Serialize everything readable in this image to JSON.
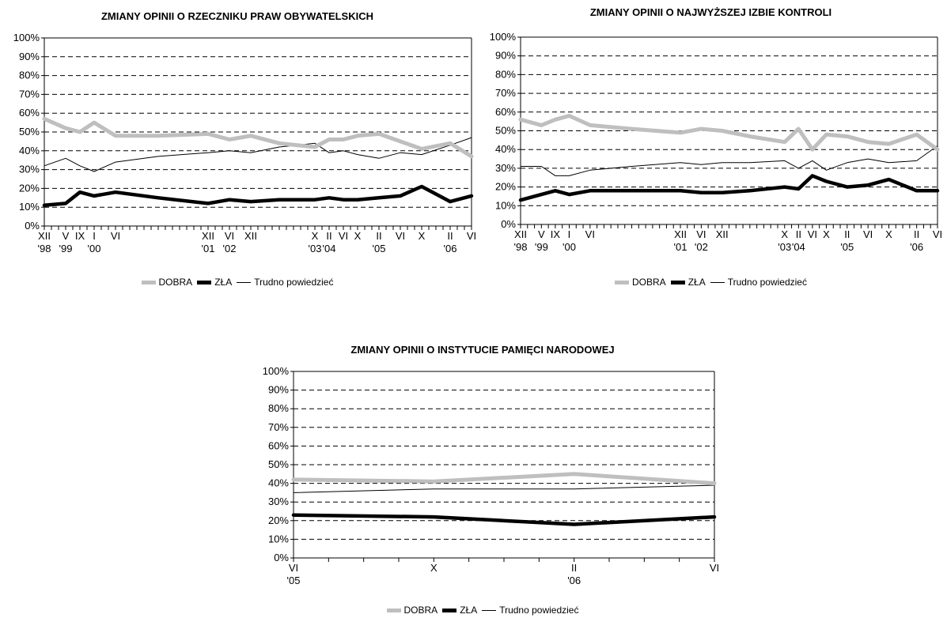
{
  "legend_labels": [
    "DOBRA",
    "ZŁA",
    "Trudno powiedzieć"
  ],
  "colors": {
    "dobra": "#bfbfbf",
    "zla": "#000000",
    "trudno": "#000000"
  },
  "chart_data": [
    {
      "type": "line",
      "title": "ZMIANY OPINII O RZECZNIKU PRAW OBYWATELSKICH",
      "ylim": [
        0,
        100
      ],
      "yticks": [
        "0%",
        "10%",
        "20%",
        "30%",
        "40%",
        "50%",
        "60%",
        "70%",
        "80%",
        "90%",
        "100%"
      ],
      "grid": true,
      "legend_position": "bottom",
      "xlim": [
        0,
        30
      ],
      "x_ticks": [
        {
          "x": 0,
          "label": "XII",
          "year": "'98"
        },
        {
          "x": 1.5,
          "label": "V",
          "year": "'99"
        },
        {
          "x": 2.5,
          "label": "IX",
          "year": ""
        },
        {
          "x": 3.5,
          "label": "I",
          "year": "'00"
        },
        {
          "x": 5.0,
          "label": "VI",
          "year": ""
        },
        {
          "x": 11.5,
          "label": "XII",
          "year": "'01"
        },
        {
          "x": 13.0,
          "label": "VI",
          "year": "'02"
        },
        {
          "x": 14.5,
          "label": "XII",
          "year": ""
        },
        {
          "x": 19.0,
          "label": "X",
          "year": "'03"
        },
        {
          "x": 20.0,
          "label": "II",
          "year": "'04"
        },
        {
          "x": 21.0,
          "label": "VI",
          "year": ""
        },
        {
          "x": 22.0,
          "label": "X",
          "year": ""
        },
        {
          "x": 23.5,
          "label": "II",
          "year": "'05"
        },
        {
          "x": 25.0,
          "label": "VI",
          "year": ""
        },
        {
          "x": 26.5,
          "label": "X",
          "year": ""
        },
        {
          "x": 28.5,
          "label": "II",
          "year": "'06"
        },
        {
          "x": 30.0,
          "label": "VI",
          "year": ""
        }
      ],
      "series": [
        {
          "name": "DOBRA",
          "points": [
            [
              0,
              57
            ],
            [
              1.5,
              52
            ],
            [
              2.5,
              50
            ],
            [
              3.5,
              55
            ],
            [
              5,
              48
            ],
            [
              8,
              48
            ],
            [
              11.5,
              49
            ],
            [
              13,
              46
            ],
            [
              14.5,
              48
            ],
            [
              16.5,
              44
            ],
            [
              19,
              42
            ],
            [
              20,
              46
            ],
            [
              21,
              46
            ],
            [
              22,
              48
            ],
            [
              23.5,
              49
            ],
            [
              25,
              45
            ],
            [
              26.5,
              41
            ],
            [
              28.5,
              44
            ],
            [
              30,
              37
            ]
          ]
        },
        {
          "name": "ZŁA",
          "points": [
            [
              0,
              11
            ],
            [
              1.5,
              12
            ],
            [
              2.5,
              18
            ],
            [
              3.5,
              16
            ],
            [
              5,
              18
            ],
            [
              8,
              15
            ],
            [
              11.5,
              12
            ],
            [
              13,
              14
            ],
            [
              14.5,
              13
            ],
            [
              16.5,
              14
            ],
            [
              19,
              14
            ],
            [
              20,
              15
            ],
            [
              21,
              14
            ],
            [
              22,
              14
            ],
            [
              23.5,
              15
            ],
            [
              25,
              16
            ],
            [
              26.5,
              21
            ],
            [
              28.5,
              13
            ],
            [
              30,
              16
            ]
          ]
        },
        {
          "name": "Trudno powiedzieć",
          "points": [
            [
              0,
              32
            ],
            [
              1.5,
              36
            ],
            [
              2.5,
              32
            ],
            [
              3.5,
              29
            ],
            [
              5,
              34
            ],
            [
              8,
              37
            ],
            [
              11.5,
              39
            ],
            [
              13,
              40
            ],
            [
              14.5,
              39
            ],
            [
              16.5,
              42
            ],
            [
              19,
              44
            ],
            [
              20,
              39
            ],
            [
              21,
              40
            ],
            [
              22,
              38
            ],
            [
              23.5,
              36
            ],
            [
              25,
              39
            ],
            [
              26.5,
              38
            ],
            [
              28.5,
              43
            ],
            [
              30,
              47
            ]
          ]
        }
      ]
    },
    {
      "type": "line",
      "title": "ZMIANY OPINII O NAJWYŻSZEJ IZBIE KONTROLI",
      "ylim": [
        0,
        100
      ],
      "yticks": [
        "0%",
        "10%",
        "20%",
        "30%",
        "40%",
        "50%",
        "60%",
        "70%",
        "80%",
        "90%",
        "100%"
      ],
      "grid": true,
      "legend_position": "bottom",
      "xlim": [
        0,
        30
      ],
      "x_ticks": [
        {
          "x": 0,
          "label": "XII",
          "year": "'98"
        },
        {
          "x": 1.5,
          "label": "V",
          "year": "'99"
        },
        {
          "x": 2.5,
          "label": "IX",
          "year": ""
        },
        {
          "x": 3.5,
          "label": "I",
          "year": "'00"
        },
        {
          "x": 5.0,
          "label": "VI",
          "year": ""
        },
        {
          "x": 11.5,
          "label": "XII",
          "year": "'01"
        },
        {
          "x": 13.0,
          "label": "VI",
          "year": "'02"
        },
        {
          "x": 14.5,
          "label": "XII",
          "year": ""
        },
        {
          "x": 19.0,
          "label": "X",
          "year": "'03"
        },
        {
          "x": 20.0,
          "label": "II",
          "year": "'04"
        },
        {
          "x": 21.0,
          "label": "VI",
          "year": ""
        },
        {
          "x": 22.0,
          "label": "X",
          "year": ""
        },
        {
          "x": 23.5,
          "label": "II",
          "year": "'05"
        },
        {
          "x": 25.0,
          "label": "VI",
          "year": ""
        },
        {
          "x": 26.5,
          "label": "X",
          "year": ""
        },
        {
          "x": 28.5,
          "label": "II",
          "year": "'06"
        },
        {
          "x": 30.0,
          "label": "VI",
          "year": ""
        }
      ],
      "series": [
        {
          "name": "DOBRA",
          "points": [
            [
              0,
              56
            ],
            [
              1.5,
              53
            ],
            [
              2.5,
              56
            ],
            [
              3.5,
              58
            ],
            [
              5,
              53
            ],
            [
              8,
              51
            ],
            [
              11.5,
              49
            ],
            [
              13,
              51
            ],
            [
              14.5,
              50
            ],
            [
              16.5,
              47
            ],
            [
              19,
              44
            ],
            [
              20,
              51
            ],
            [
              21,
              40
            ],
            [
              22,
              48
            ],
            [
              23.5,
              47
            ],
            [
              25,
              44
            ],
            [
              26.5,
              43
            ],
            [
              28.5,
              48
            ],
            [
              30,
              40
            ]
          ]
        },
        {
          "name": "ZŁA",
          "points": [
            [
              0,
              13
            ],
            [
              1.5,
              16
            ],
            [
              2.5,
              18
            ],
            [
              3.5,
              16
            ],
            [
              5,
              18
            ],
            [
              8,
              18
            ],
            [
              11.5,
              18
            ],
            [
              13,
              17
            ],
            [
              14.5,
              17
            ],
            [
              16.5,
              18
            ],
            [
              19,
              20
            ],
            [
              20,
              19
            ],
            [
              21,
              26
            ],
            [
              22,
              23
            ],
            [
              23.5,
              20
            ],
            [
              25,
              21
            ],
            [
              26.5,
              24
            ],
            [
              28.5,
              18
            ],
            [
              30,
              18
            ]
          ]
        },
        {
          "name": "Trudno powiedzieć",
          "points": [
            [
              0,
              31
            ],
            [
              1.5,
              31
            ],
            [
              2.5,
              26
            ],
            [
              3.5,
              26
            ],
            [
              5,
              29
            ],
            [
              8,
              31
            ],
            [
              11.5,
              33
            ],
            [
              13,
              32
            ],
            [
              14.5,
              33
            ],
            [
              16.5,
              33
            ],
            [
              19,
              34
            ],
            [
              20,
              30
            ],
            [
              21,
              34
            ],
            [
              22,
              29
            ],
            [
              23.5,
              33
            ],
            [
              25,
              35
            ],
            [
              26.5,
              33
            ],
            [
              28.5,
              34
            ],
            [
              30,
              42
            ]
          ]
        }
      ]
    },
    {
      "type": "line",
      "title": "ZMIANY OPINII O INSTYTUCIE PAMIĘCI NARODOWEJ",
      "ylim": [
        0,
        100
      ],
      "yticks": [
        "0%",
        "10%",
        "20%",
        "30%",
        "40%",
        "50%",
        "60%",
        "70%",
        "80%",
        "90%",
        "100%"
      ],
      "grid": true,
      "legend_position": "bottom",
      "xlim": [
        0,
        12
      ],
      "x_ticks": [
        {
          "x": 0,
          "label": "VI",
          "year": "'05"
        },
        {
          "x": 4,
          "label": "X",
          "year": ""
        },
        {
          "x": 8,
          "label": "II",
          "year": "'06"
        },
        {
          "x": 12,
          "label": "VI",
          "year": ""
        }
      ],
      "minor_ticks": 12,
      "series": [
        {
          "name": "DOBRA",
          "points": [
            [
              0,
              42
            ],
            [
              4,
              41
            ],
            [
              8,
              45
            ],
            [
              12,
              40
            ]
          ]
        },
        {
          "name": "ZŁA",
          "points": [
            [
              0,
              23
            ],
            [
              4,
              22
            ],
            [
              8,
              18
            ],
            [
              12,
              22
            ]
          ]
        },
        {
          "name": "Trudno powiedzieć",
          "points": [
            [
              0,
              35
            ],
            [
              4,
              37
            ],
            [
              8,
              37
            ],
            [
              12,
              39
            ]
          ]
        }
      ]
    }
  ]
}
